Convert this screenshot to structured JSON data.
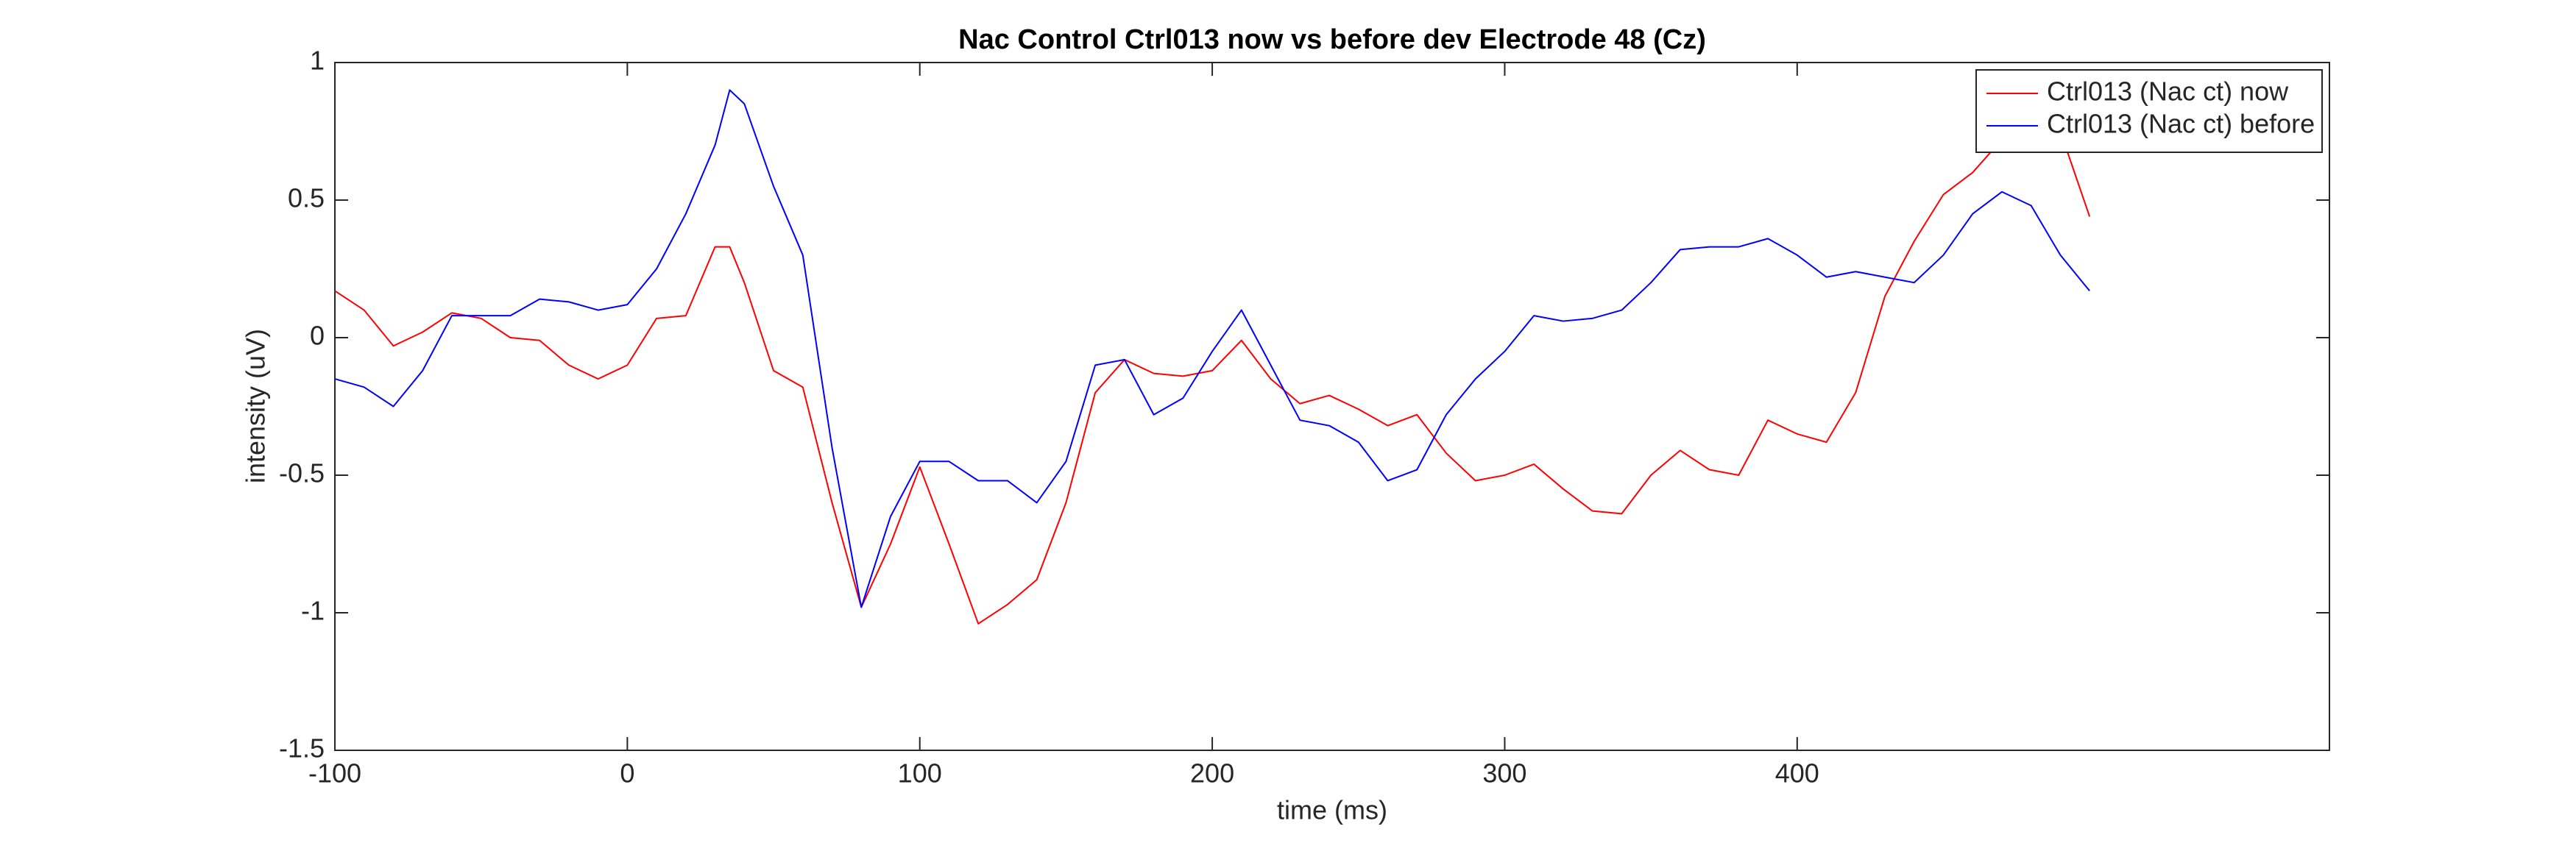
{
  "chart_data": {
    "type": "line",
    "title": "Nac Control Ctrl013 now vs before dev Electrode 48 (Cz)",
    "x_label": "time (ms)",
    "y_label": "intensity (uV)",
    "x": [
      -100,
      -90,
      -80,
      -70,
      -60,
      -50,
      -40,
      -30,
      -20,
      -10,
      0,
      10,
      20,
      30,
      35,
      40,
      50,
      60,
      70,
      80,
      90,
      100,
      110,
      120,
      130,
      140,
      150,
      160,
      170,
      180,
      190,
      200,
      210,
      220,
      230,
      240,
      250,
      260,
      270,
      280,
      290,
      300,
      310,
      320,
      330,
      340,
      350,
      360,
      370,
      380,
      390,
      400,
      410,
      420,
      430,
      440,
      450,
      460,
      470,
      480,
      490,
      500
    ],
    "series": [
      {
        "name": "Ctrl013 (Nac ct) now",
        "color": "#ff0000",
        "values": [
          0.17,
          0.1,
          -0.03,
          0.02,
          0.09,
          0.07,
          0.0,
          -0.01,
          -0.1,
          -0.15,
          -0.1,
          0.07,
          0.08,
          0.33,
          0.33,
          0.2,
          -0.12,
          -0.18,
          -0.6,
          -0.98,
          -0.75,
          -0.47,
          -0.75,
          -1.04,
          -0.97,
          -0.88,
          -0.6,
          -0.2,
          -0.08,
          -0.13,
          -0.14,
          -0.12,
          -0.01,
          -0.15,
          -0.24,
          -0.21,
          -0.26,
          -0.32,
          -0.28,
          -0.42,
          -0.52,
          -0.5,
          -0.46,
          -0.55,
          -0.63,
          -0.64,
          -0.5,
          -0.41,
          -0.48,
          -0.5,
          -0.3,
          -0.35,
          -0.38,
          -0.2,
          0.15,
          0.35,
          0.52,
          0.6,
          0.72,
          0.85,
          0.75,
          0.44
        ]
      },
      {
        "name": "Ctrl013 (Nac ct) before",
        "color": "#0000ff",
        "values": [
          -0.15,
          -0.18,
          -0.25,
          -0.12,
          0.08,
          0.08,
          0.08,
          0.14,
          0.13,
          0.1,
          0.12,
          0.25,
          0.45,
          0.7,
          0.9,
          0.85,
          0.55,
          0.3,
          -0.4,
          -0.98,
          -0.65,
          -0.45,
          -0.45,
          -0.52,
          -0.52,
          -0.6,
          -0.45,
          -0.1,
          -0.08,
          -0.28,
          -0.22,
          -0.05,
          0.1,
          -0.1,
          -0.3,
          -0.32,
          -0.38,
          -0.52,
          -0.48,
          -0.28,
          -0.15,
          -0.05,
          0.08,
          0.06,
          0.07,
          0.1,
          0.2,
          0.32,
          0.33,
          0.33,
          0.36,
          0.3,
          0.22,
          0.24,
          0.22,
          0.2,
          0.3,
          0.45,
          0.53,
          0.48,
          0.3,
          0.17
        ]
      }
    ],
    "xlim": [
      -100,
      582
    ],
    "xticks": [
      -100,
      0,
      100,
      200,
      300,
      400
    ],
    "ylim": [
      -1.5,
      1
    ],
    "yticks": [
      -1.5,
      -1,
      -0.5,
      0,
      0.5,
      1
    ],
    "grid": false,
    "legend": "top-right"
  }
}
